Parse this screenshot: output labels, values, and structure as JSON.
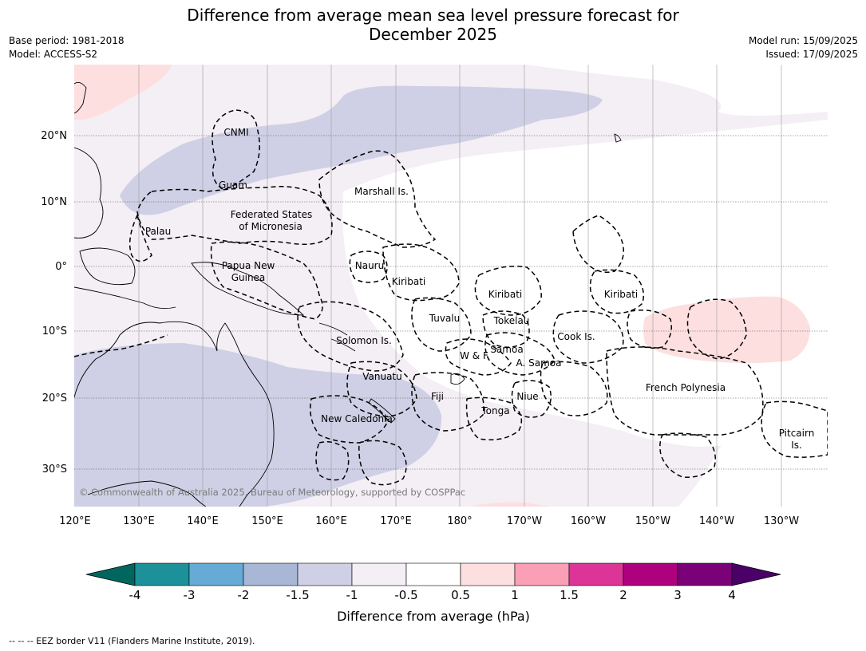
{
  "title_line1": "Difference from average mean sea level pressure forecast for",
  "title_line2": "December 2025",
  "base_period": "Base period: 1981-2018",
  "model": "Model: ACCESS-S2",
  "model_run": "Model run: 15/09/2025",
  "issued": "Issued: 17/09/2025",
  "copyright": "© Commonwealth of Australia 2025, Bureau of Meteorology, supported by COSPPac",
  "footnote": "--  --  -- EEZ border V11 (Flanders Marine Institute, 2019).",
  "lon_ticks": [
    "120°E",
    "130°E",
    "140°E",
    "150°E",
    "160°E",
    "170°E",
    "180°",
    "170°W",
    "160°W",
    "150°W",
    "140°W",
    "130°W"
  ],
  "lat_ticks": [
    "20°N",
    "10°N",
    "0°",
    "10°S",
    "20°S",
    "30°S"
  ],
  "regions": [
    {
      "name": "CNMI",
      "lines": [
        "CNMI"
      ]
    },
    {
      "name": "Guam",
      "lines": [
        "Guam"
      ]
    },
    {
      "name": "Marshall",
      "lines": [
        "Marshall Is."
      ]
    },
    {
      "name": "FSM",
      "lines": [
        "Federated States",
        "of Micronesia"
      ]
    },
    {
      "name": "Palau",
      "lines": [
        "Palau"
      ]
    },
    {
      "name": "PNG",
      "lines": [
        "Papua New",
        "Guinea"
      ]
    },
    {
      "name": "Nauru",
      "lines": [
        "Nauru"
      ]
    },
    {
      "name": "Kiribati-W",
      "lines": [
        "Kiribati"
      ]
    },
    {
      "name": "Kiribati-C",
      "lines": [
        "Kiribati"
      ]
    },
    {
      "name": "Kiribati-E",
      "lines": [
        "Kiribati"
      ]
    },
    {
      "name": "Tuvalu",
      "lines": [
        "Tuvalu"
      ]
    },
    {
      "name": "Tokelau",
      "lines": [
        "Tokelau"
      ]
    },
    {
      "name": "Solomon",
      "lines": [
        "Solomon Is."
      ]
    },
    {
      "name": "Samoa",
      "lines": [
        "Samoa"
      ]
    },
    {
      "name": "WF",
      "lines": [
        "W & F"
      ]
    },
    {
      "name": "ASamoa",
      "lines": [
        "A. Samoa"
      ]
    },
    {
      "name": "Cook",
      "lines": [
        "Cook Is."
      ]
    },
    {
      "name": "Vanuatu",
      "lines": [
        "Vanuatu"
      ]
    },
    {
      "name": "Fiji",
      "lines": [
        "Fiji"
      ]
    },
    {
      "name": "Niue",
      "lines": [
        "Niue"
      ]
    },
    {
      "name": "Tonga",
      "lines": [
        "Tonga"
      ]
    },
    {
      "name": "NewCal",
      "lines": [
        "New Caledonia"
      ]
    },
    {
      "name": "FrPoly",
      "lines": [
        "French Polynesia"
      ]
    },
    {
      "name": "Pitcairn",
      "lines": [
        "Pitcairn",
        "Is."
      ]
    }
  ],
  "colorbar": {
    "title": "Difference from average (hPa)",
    "ticks": [
      "-4",
      "-3",
      "-2",
      "-1.5",
      "-1",
      "-0.5",
      "0.5",
      "1",
      "1.5",
      "2",
      "3",
      "4"
    ],
    "under_color": "#01665e",
    "over_color": "#4b0068",
    "colors": [
      "#1c9199",
      "#65abd6",
      "#a8b7d6",
      "#cfd0e5",
      "#f4eef5",
      "#ffffff",
      "#fddfe0",
      "#fa9fb5",
      "#dd3497",
      "#ae017e",
      "#7a0177"
    ]
  }
}
